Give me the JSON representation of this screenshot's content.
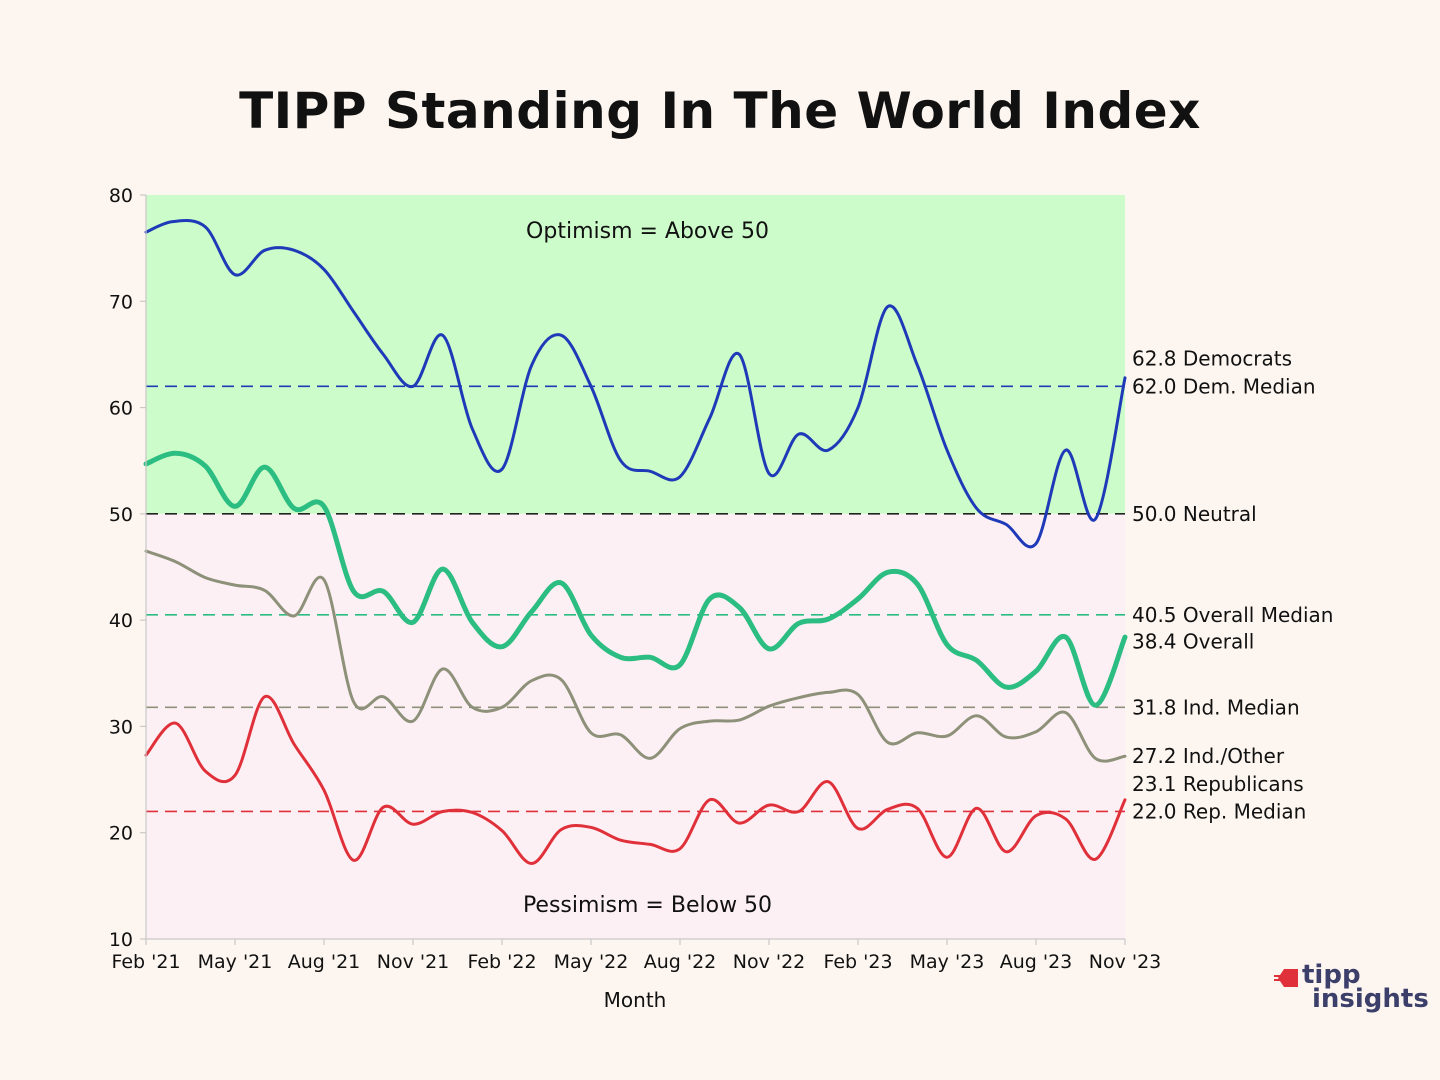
{
  "title": "TIPP Standing In The World Index",
  "logo": {
    "line1": "tipp",
    "line2": "insights"
  },
  "chart_data": {
    "type": "line",
    "title": "TIPP Standing In The World Index",
    "xlabel": "Month",
    "ylabel": "",
    "ylim": [
      10,
      80
    ],
    "yticks": [
      10,
      20,
      30,
      40,
      50,
      60,
      70,
      80
    ],
    "x_range": [
      0,
      33
    ],
    "xtick_positions": [
      0,
      3,
      6,
      9,
      12,
      15,
      18,
      21,
      24,
      27,
      30,
      33
    ],
    "xtick_labels": [
      "Feb '21",
      "May '21",
      "Aug '21",
      "Nov '21",
      "Feb '22",
      "May '22",
      "Aug '22",
      "Nov '22",
      "Feb '23",
      "May '23",
      "Aug '23",
      "Nov '23"
    ],
    "grid": false,
    "zones": [
      {
        "label": "Optimism = Above 50",
        "from": 50,
        "to": 80,
        "color": "#ccfcc9"
      },
      {
        "label": "Pessimism = Below 50",
        "from": 10,
        "to": 50,
        "color": "#fdf0f4"
      }
    ],
    "series": [
      {
        "name": "Democrats",
        "color": "#1f3ab8",
        "width": 3,
        "x": [
          0,
          0.9,
          2,
          3,
          4,
          5,
          6,
          7,
          8,
          9,
          10,
          11,
          12,
          13,
          14,
          15,
          16,
          17,
          18,
          19,
          20,
          21,
          22,
          23,
          24,
          25,
          26,
          27,
          28,
          29,
          30,
          31,
          32,
          33
        ],
        "values": [
          76.5,
          77.5,
          77,
          72.5,
          74.8,
          74.8,
          73,
          69,
          65,
          62,
          66.8,
          58,
          54.2,
          64,
          66.8,
          62,
          55,
          54,
          53.5,
          59,
          65,
          53.8,
          57.5,
          56,
          60,
          69.5,
          64,
          56,
          50.5,
          49,
          47.2,
          56,
          49.5,
          62.8
        ]
      },
      {
        "name": "Overall",
        "color": "#2bbd81",
        "width": 5,
        "x": [
          0,
          1,
          2,
          3,
          4,
          5,
          6,
          7,
          8,
          9,
          10,
          11,
          12,
          13,
          14,
          15,
          16,
          17,
          18,
          19,
          20,
          21,
          22,
          23,
          24,
          25,
          26,
          27,
          28,
          29,
          30,
          31,
          32,
          33
        ],
        "values": [
          54.7,
          55.7,
          54.5,
          50.7,
          54.4,
          50.5,
          50.7,
          42.7,
          42.7,
          39.8,
          44.8,
          39.8,
          37.5,
          40.8,
          43.5,
          38.6,
          36.5,
          36.5,
          35.8,
          42,
          41.2,
          37.3,
          39.7,
          40.1,
          42,
          44.5,
          43.4,
          37.7,
          36.2,
          33.7,
          35.2,
          38.4,
          32,
          38.4
        ]
      },
      {
        "name": "Ind./Other",
        "color": "#8e9179",
        "width": 3,
        "x": [
          0,
          1,
          2,
          3,
          4,
          5,
          6,
          7,
          8,
          9,
          10,
          11,
          12,
          13,
          14,
          15,
          16,
          17,
          18,
          19,
          20,
          21,
          22,
          23,
          24,
          25,
          26,
          27,
          28,
          29,
          30,
          31,
          32,
          33
        ],
        "values": [
          46.5,
          45.5,
          44,
          43.3,
          42.8,
          40.4,
          43.8,
          32.3,
          32.8,
          30.5,
          35.4,
          31.8,
          31.8,
          34.3,
          34.4,
          29.4,
          29.2,
          27,
          29.8,
          30.5,
          30.6,
          31.9,
          32.7,
          33.2,
          33,
          28.5,
          29.4,
          29.1,
          31,
          29,
          29.5,
          31.3,
          27,
          27.2
        ]
      },
      {
        "name": "Republicans",
        "color": "#e0303a",
        "width": 3,
        "x": [
          0,
          1,
          2,
          3,
          4,
          5,
          6,
          7,
          8,
          9,
          10,
          11,
          12,
          13,
          14,
          15,
          16,
          17,
          18,
          19,
          20,
          21,
          22,
          23,
          24,
          25,
          26,
          27,
          28,
          29,
          30,
          31,
          32,
          33
        ],
        "values": [
          27.3,
          30.3,
          25.8,
          25.4,
          32.8,
          28.3,
          24,
          17.4,
          22.4,
          20.8,
          22,
          21.9,
          20.2,
          17.1,
          20.3,
          20.5,
          19.3,
          18.9,
          18.5,
          23.1,
          20.9,
          22.6,
          22,
          24.8,
          20.4,
          22.2,
          22.3,
          17.7,
          22.3,
          18.2,
          21.6,
          21.3,
          17.5,
          23.1
        ]
      }
    ],
    "reference_lines": [
      {
        "value": 62.0,
        "color": "#1f3ab8"
      },
      {
        "value": 50.0,
        "color": "#222222"
      },
      {
        "value": 40.5,
        "color": "#2bbd81"
      },
      {
        "value": 31.8,
        "color": "#8e9179"
      },
      {
        "value": 22.0,
        "color": "#e0303a"
      }
    ],
    "annotations": [
      {
        "text": "62.8 Democrats",
        "y": 64.6
      },
      {
        "text": "62.0 Dem. Median",
        "y": 62.0
      },
      {
        "text": "50.0 Neutral",
        "y": 50.0
      },
      {
        "text": "40.5 Overall Median",
        "y": 40.5
      },
      {
        "text": "38.4 Overall",
        "y": 38.0
      },
      {
        "text": "31.8 Ind. Median",
        "y": 31.8
      },
      {
        "text": "27.2 Ind./Other",
        "y": 27.2
      },
      {
        "text": "23.1 Republicans",
        "y": 24.6
      },
      {
        "text": "22.0 Rep. Median",
        "y": 22.0
      }
    ]
  }
}
